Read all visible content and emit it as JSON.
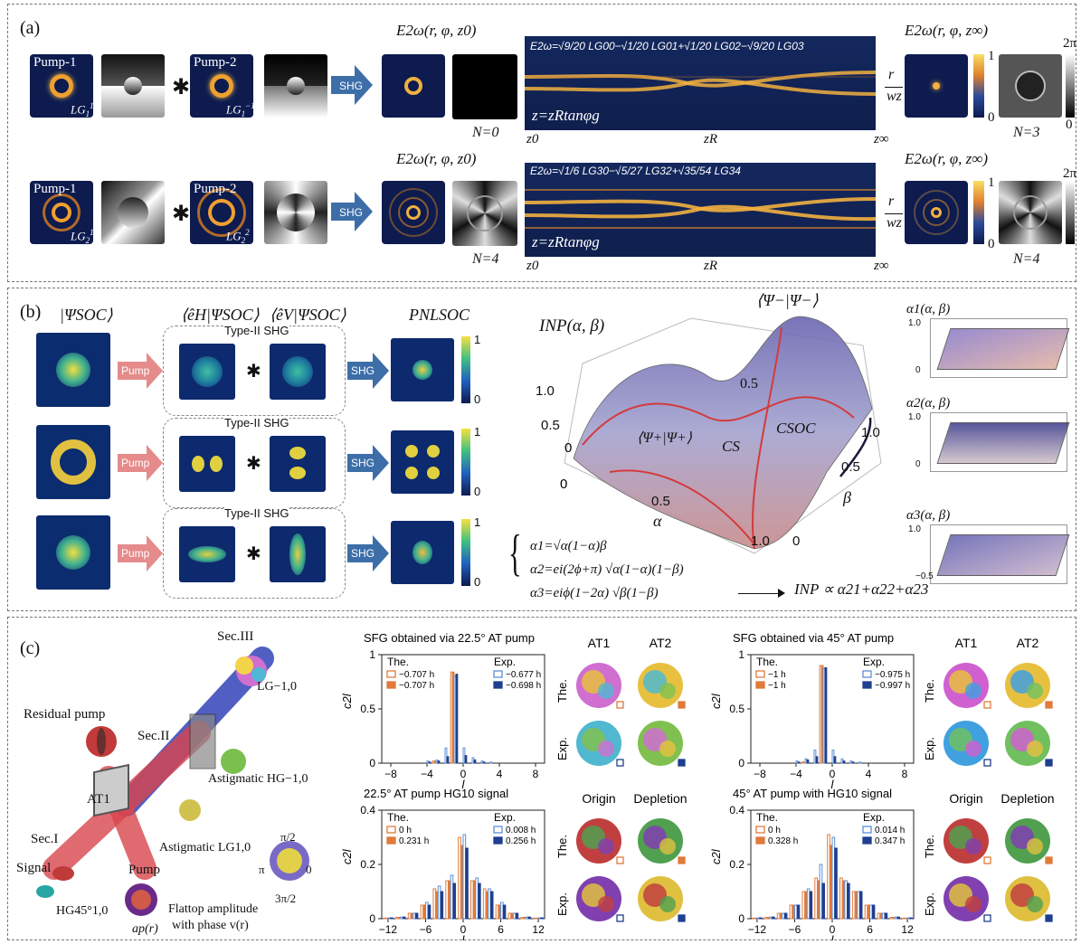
{
  "panel_a": {
    "label": "(a)",
    "row1": {
      "pump1": "Pump-1",
      "pump1_mode": "LG",
      "pump1_sub": "1",
      "pump1_sup": "1",
      "pump2": "Pump-2",
      "pump2_mode": "LG",
      "pump2_sub": "1",
      "pump2_sup": "−1",
      "shg": "SHG",
      "field_near": "E2ω(r, φ, z0)",
      "equation": "E2ω=√9/20 LG00−√1/20 LG01+√1/20 LG02−√9/20 LG03",
      "z_eq": "z=zRtanφg",
      "n_left": "N=0",
      "z0": "z0",
      "zR": "zR",
      "zinf": "z∞",
      "r_over_w": [
        "r",
        "wz"
      ],
      "field_far": "E2ω(r, φ, z∞)",
      "cbar_top": "1",
      "cbar_bot": "0",
      "phase_top": "2π",
      "phase_bot": "0",
      "n_right": "N=3"
    },
    "row2": {
      "pump1": "Pump-1",
      "pump1_mode": "LG",
      "pump1_sub": "2",
      "pump1_sup": "1",
      "pump2": "Pump-2",
      "pump2_mode": "LG",
      "pump2_sub": "2",
      "pump2_sup": "2",
      "shg": "SHG",
      "field_near": "E2ω(r, φ, z0)",
      "equation": "E2ω=√1/6 LG30−√5/27 LG32+√35/54 LG34",
      "z_eq": "z=zRtanφg",
      "n_left": "N=4",
      "z0": "z0",
      "zR": "zR",
      "zinf": "z∞",
      "r_over_w": [
        "r",
        "wz"
      ],
      "field_far": "E2ω(r, φ, z∞)",
      "cbar_top": "1",
      "cbar_bot": "0",
      "phase_top": "2π",
      "n_right": "N=4"
    }
  },
  "panel_b": {
    "label": "(b)",
    "col_psi": "|ΨSOC⟩",
    "col_eh": "⟨êH|ΨSOC⟩",
    "col_ev": "⟨êV|ΨSOC⟩",
    "col_p": "PNLSOC",
    "type": "Type-II SHG",
    "pump": "Pump",
    "shg": "SHG",
    "cbar_top": "1",
    "cbar_bot": "0",
    "surface": {
      "title": "INP(α, β)",
      "top_label": "⟨Ψ−|Ψ−⟩",
      "mid_label": "⟨Ψ+|Ψ+⟩",
      "cs": "CS",
      "csoc": "CSOC",
      "z_ticks": [
        "0",
        "0.5",
        "1.0"
      ],
      "alpha_ticks": [
        "0",
        "0.5",
        "1.0"
      ],
      "beta_ticks": [
        "0",
        "0.5",
        "1.0"
      ],
      "alpha": "α",
      "beta": "β",
      "inner": "0.5"
    },
    "equations": [
      "α1=√α(1−α)β",
      "α2=ei(2ϕ+π) √α(1−α)(1−β)",
      "α3=eiϕ(1−2α) √β(1−β)"
    ],
    "result": "INP ∝ α21+α22+α23",
    "minis": [
      {
        "title": "α1(α, β)",
        "z_ticks": [
          "0",
          "0.2",
          "0.4",
          "0.6",
          "0.8",
          "1.0"
        ]
      },
      {
        "title": "α2(α, β)",
        "z_ticks": [
          "0",
          "0.2",
          "0.4",
          "0.6",
          "0.8",
          "1.0"
        ]
      },
      {
        "title": "α3(α, β)",
        "z_ticks": [
          "−0.5",
          "0",
          "0.5",
          "1.0"
        ]
      }
    ]
  },
  "panel_c": {
    "label": "(c)",
    "setup": {
      "sec3": "Sec.III",
      "lg": "LG−1,0",
      "residual": "Residual pump",
      "sec2": "Sec.II",
      "astig_hg": "Astigmatic HG−1,0",
      "at1": "AT1",
      "sec1": "Sec.I",
      "astig_lg": "Astigmatic LG1,0",
      "signal": "Signal",
      "hg": "HG45°1,0",
      "pump": "Pump",
      "flattop1": "Flattop amplitude",
      "flattop2": "with phase v(r)",
      "ap": "ap(r)",
      "wheel": [
        "π/2",
        "π",
        "0",
        "3π/2",
        "1",
        "0"
      ]
    },
    "charts_titles": [
      "SFG obtained via 22.5° AT pump",
      "SFG obtained via 45° AT pump",
      "22.5° AT pump HG10 signal",
      "45° AT pump with HG10 signal"
    ],
    "side_labels": {
      "at1": "AT1",
      "at2": "AT2",
      "the": "The.",
      "exp": "Exp.",
      "origin": "Origin",
      "depletion": "Depletion"
    }
  },
  "chart_data": [
    {
      "type": "bar",
      "title": "SFG obtained via 22.5° AT pump",
      "xlabel": "l",
      "ylabel": "c2l",
      "ylim": [
        0,
        1.0
      ],
      "xlim": [
        -9,
        9
      ],
      "x_ticks": [
        -8,
        -4,
        0,
        4,
        8
      ],
      "y_ticks": [
        0,
        0.5,
        1.0
      ],
      "legend_groups": [
        {
          "label": "The.",
          "entries": [
            "−0.707 h",
            "−0.707 h"
          ]
        },
        {
          "label": "Exp.",
          "entries": [
            "−0.677 h",
            "−0.698 h"
          ]
        }
      ],
      "x": [
        -4,
        -3,
        -2,
        -1,
        0,
        1,
        2,
        3
      ],
      "series": [
        {
          "name": "−0.707 h",
          "style": "open-orange",
          "values": [
            0,
            0.02,
            0.0,
            0.84,
            0,
            0.0,
            0.0,
            0
          ]
        },
        {
          "name": "−0.707 h",
          "style": "filled-orange",
          "values": [
            0,
            0.02,
            0.0,
            0.84,
            0,
            0.0,
            0.0,
            0
          ]
        },
        {
          "name": "−0.677 h",
          "style": "open-blue",
          "values": [
            0.02,
            0.03,
            0.14,
            0.8,
            0.14,
            0.05,
            0.02,
            0.01
          ]
        },
        {
          "name": "−0.698 h",
          "style": "filled-blue",
          "values": [
            0.01,
            0.02,
            0.06,
            0.82,
            0.07,
            0.03,
            0.01,
            0.0
          ]
        }
      ]
    },
    {
      "type": "bar",
      "title": "SFG obtained via 45° AT pump",
      "xlabel": "l",
      "ylabel": "c2l",
      "ylim": [
        0,
        1.0
      ],
      "xlim": [
        -9,
        9
      ],
      "x_ticks": [
        -8,
        -4,
        0,
        4,
        8
      ],
      "y_ticks": [
        0,
        0.5,
        1.0
      ],
      "legend_groups": [
        {
          "label": "The.",
          "entries": [
            "−1 h",
            "−1 h"
          ]
        },
        {
          "label": "Exp.",
          "entries": [
            "−0.975 h",
            "−0.997 h"
          ]
        }
      ],
      "x": [
        -4,
        -3,
        -2,
        -1,
        0,
        1,
        2,
        3
      ],
      "series": [
        {
          "name": "−1 h",
          "style": "open-orange",
          "values": [
            0,
            0.01,
            0.0,
            0.9,
            0,
            0.0,
            0.0,
            0
          ]
        },
        {
          "name": "−1 h",
          "style": "filled-orange",
          "values": [
            0,
            0.01,
            0.0,
            0.9,
            0,
            0.0,
            0.0,
            0
          ]
        },
        {
          "name": "−0.975 h",
          "style": "open-blue",
          "values": [
            0.02,
            0.04,
            0.12,
            0.87,
            0.12,
            0.04,
            0.02,
            0.01
          ]
        },
        {
          "name": "−0.997 h",
          "style": "filled-blue",
          "values": [
            0.01,
            0.03,
            0.06,
            0.88,
            0.06,
            0.02,
            0.01,
            0.0
          ]
        }
      ]
    },
    {
      "type": "bar",
      "title": "22.5° AT pump HG10 signal",
      "xlabel": "l",
      "ylabel": "c2l",
      "ylim": [
        0,
        0.4
      ],
      "xlim": [
        -13,
        13
      ],
      "x_ticks": [
        -12,
        -6,
        0,
        6,
        12
      ],
      "y_ticks": [
        0,
        0.2,
        0.4
      ],
      "legend_groups": [
        {
          "label": "The.",
          "entries": [
            "0 h",
            "0.231 h"
          ]
        },
        {
          "label": "Exp.",
          "entries": [
            "0.008 h",
            "0.256 h"
          ]
        }
      ],
      "x": [
        -12,
        -10,
        -8,
        -6,
        -4,
        -2,
        0,
        2,
        4,
        6,
        8,
        10,
        12
      ],
      "series": [
        {
          "name": "0 h",
          "style": "open-orange",
          "values": [
            0.002,
            0.005,
            0.02,
            0.05,
            0.11,
            0.14,
            0.3,
            0.14,
            0.11,
            0.05,
            0.02,
            0.005,
            0.002
          ]
        },
        {
          "name": "0.231 h",
          "style": "filled-orange",
          "values": [
            0.002,
            0.005,
            0.02,
            0.05,
            0.1,
            0.14,
            0.27,
            0.14,
            0.1,
            0.05,
            0.02,
            0.005,
            0.002
          ]
        },
        {
          "name": "0.008 h",
          "style": "open-blue",
          "values": [
            0.003,
            0.006,
            0.02,
            0.06,
            0.12,
            0.16,
            0.31,
            0.15,
            0.11,
            0.06,
            0.02,
            0.006,
            0.003
          ]
        },
        {
          "name": "0.256 h",
          "style": "filled-blue",
          "values": [
            0.003,
            0.006,
            0.02,
            0.05,
            0.1,
            0.13,
            0.26,
            0.13,
            0.1,
            0.05,
            0.02,
            0.006,
            0.003
          ]
        }
      ]
    },
    {
      "type": "bar",
      "title": "45° AT pump with HG10 signal",
      "xlabel": "l",
      "ylabel": "c2l",
      "ylim": [
        0,
        0.4
      ],
      "xlim": [
        -13,
        13
      ],
      "x_ticks": [
        -12,
        -6,
        0,
        6,
        12
      ],
      "y_ticks": [
        0,
        0.2,
        0.4
      ],
      "legend_groups": [
        {
          "label": "The.",
          "entries": [
            "0 h",
            "0.328 h"
          ]
        },
        {
          "label": "Exp.",
          "entries": [
            "0.014 h",
            "0.347 h"
          ]
        }
      ],
      "x": [
        -12,
        -10,
        -8,
        -6,
        -4,
        -2,
        0,
        2,
        4,
        6,
        8,
        10,
        12
      ],
      "series": [
        {
          "name": "0 h",
          "style": "open-orange",
          "values": [
            0.002,
            0.005,
            0.02,
            0.05,
            0.1,
            0.15,
            0.31,
            0.15,
            0.1,
            0.05,
            0.02,
            0.005,
            0.002
          ]
        },
        {
          "name": "0.328 h",
          "style": "filled-orange",
          "values": [
            0.002,
            0.005,
            0.02,
            0.05,
            0.1,
            0.14,
            0.27,
            0.14,
            0.1,
            0.05,
            0.02,
            0.005,
            0.002
          ]
        },
        {
          "name": "0.014 h",
          "style": "open-blue",
          "values": [
            0.003,
            0.006,
            0.02,
            0.05,
            0.11,
            0.2,
            0.3,
            0.14,
            0.1,
            0.05,
            0.02,
            0.006,
            0.003
          ]
        },
        {
          "name": "0.347 h",
          "style": "filled-blue",
          "values": [
            0.003,
            0.006,
            0.02,
            0.05,
            0.1,
            0.13,
            0.26,
            0.13,
            0.1,
            0.05,
            0.02,
            0.006,
            0.003
          ]
        }
      ]
    }
  ],
  "colors": {
    "orange": "#e07b3a",
    "blue": "#1f3f8f",
    "light_blue": "#5d8fd6",
    "beam_bg": "#0d1b4f",
    "arrow": "#3d6ea8",
    "pump_arrow": "#e58b8b"
  }
}
